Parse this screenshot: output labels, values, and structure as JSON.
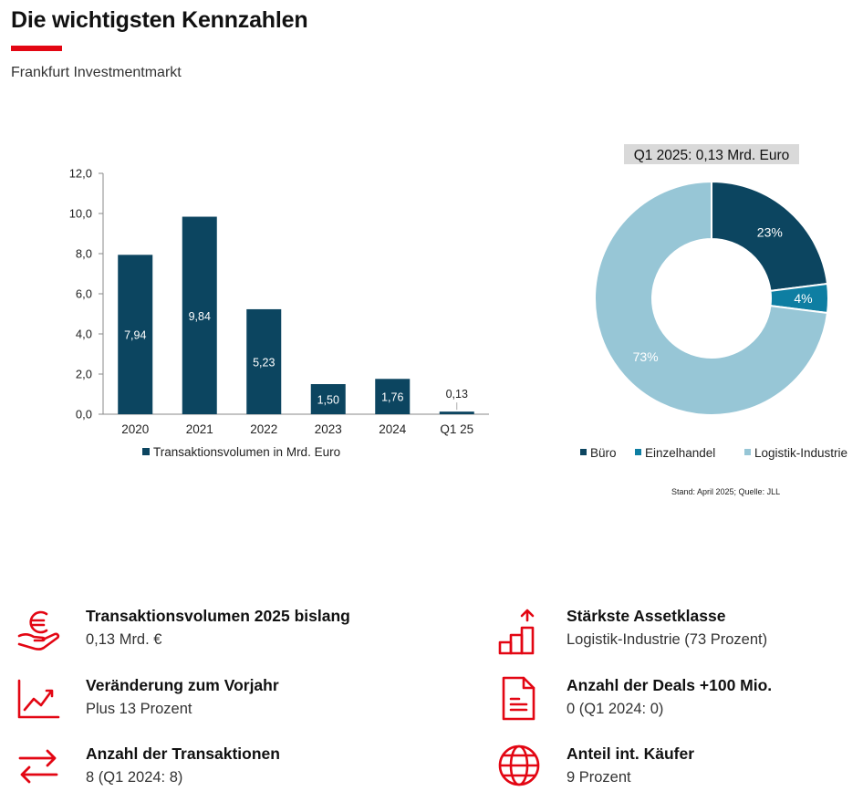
{
  "header": {
    "title": "Die wichtigsten Kennzahlen",
    "subtitle": "Frankfurt Investmentmarkt"
  },
  "colors": {
    "accent": "#e30613",
    "bar": "#0c4560",
    "pie_buero": "#0c4560",
    "pie_einzelhandel": "#0e7ea2",
    "pie_logistik": "#97c6d6"
  },
  "chart_data": [
    {
      "type": "bar",
      "categories": [
        "2020",
        "2021",
        "2022",
        "2023",
        "2024",
        "Q1 25"
      ],
      "series": [
        {
          "name": "Transaktionsvolumen in Mrd. Euro",
          "values": [
            7.94,
            9.84,
            5.23,
            1.5,
            1.76,
            0.13
          ]
        }
      ],
      "data_labels": [
        "7,94",
        "9,84",
        "5,23",
        "1,50",
        "1,76",
        "0,13"
      ],
      "yticks": [
        "0,0",
        "2,0",
        "4,0",
        "6,0",
        "8,0",
        "10,0",
        "12,0"
      ],
      "ylim": [
        0,
        12
      ],
      "legend": "bottom",
      "grid": false
    },
    {
      "type": "pie",
      "title": "Q1 2025: 0,13 Mrd. Euro",
      "labels": [
        "Büro",
        "Einzelhandel",
        "Logistik-Industrie"
      ],
      "values": [
        23,
        4,
        73
      ],
      "data_labels": [
        "23%",
        "4%",
        "73%"
      ],
      "donut": true,
      "legend": "bottom"
    }
  ],
  "source": "Stand: April 2025; Quelle: JLL",
  "kpis": [
    {
      "label": "Transaktionsvolumen 2025 bislang",
      "value": "0,13 Mrd. €",
      "icon": "euro-hand-icon"
    },
    {
      "label": "Veränderung zum Vorjahr",
      "value": "Plus 13 Prozent",
      "icon": "trend-chart-icon"
    },
    {
      "label": "Anzahl der Transaktionen",
      "value": "8 (Q1 2024: 8)",
      "icon": "exchange-arrows-icon"
    },
    {
      "label": "Stärkste Assetklasse",
      "value": "Logistik-Industrie (73 Prozent)",
      "icon": "rising-steps-icon"
    },
    {
      "label": "Anzahl der Deals +100 Mio.",
      "value": "0 (Q1 2024: 0)",
      "icon": "document-icon"
    },
    {
      "label": "Anteil int. Käufer",
      "value": "9 Prozent",
      "icon": "globe-icon"
    }
  ]
}
